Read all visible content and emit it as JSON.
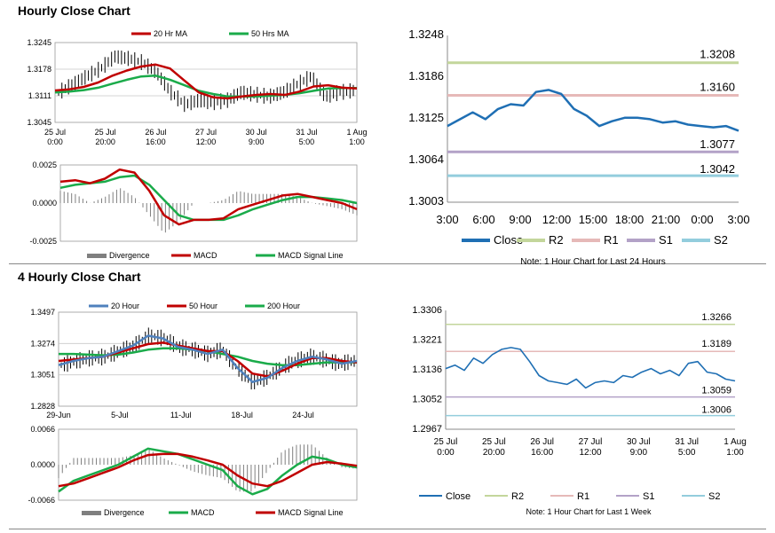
{
  "sections": [
    {
      "title": "Hourly Close Chart"
    },
    {
      "title": "4 Hourly Close Chart"
    }
  ],
  "colors": {
    "close": "#1f6fb4",
    "r2": "#c3d69b",
    "r1": "#e6b9b8",
    "s1": "#b3a2c7",
    "s2": "#93cddd",
    "ma_red": "#c00000",
    "ma_green": "#1aab4a",
    "ma_blue": "#4f81bd",
    "divergence": "#7f7f7f"
  },
  "chart_data": [
    {
      "id": "hourly_price",
      "type": "line",
      "legend": [
        "20 Hr MA",
        "50 Hrs MA"
      ],
      "x_ticks": [
        "25 Jul\n0:00",
        "25 Jul\n20:00",
        "26 Jul\n16:00",
        "27 Jul\n12:00",
        "30 Jul\n9:00",
        "31 Jul\n5:00",
        "1 Aug\n1:00"
      ],
      "y_ticks": [
        "1.3245",
        "1.3178",
        "1.3111",
        "1.3045"
      ],
      "ylim": [
        1.3045,
        1.3245
      ],
      "series": [
        {
          "name": "20 Hr MA",
          "values": [
            1.3125,
            1.3128,
            1.3134,
            1.3145,
            1.3162,
            1.3175,
            1.3185,
            1.319,
            1.318,
            1.315,
            1.312,
            1.3108,
            1.3105,
            1.311,
            1.3114,
            1.3116,
            1.3114,
            1.3122,
            1.3135,
            1.3138,
            1.3132,
            1.313
          ]
        },
        {
          "name": "50 Hrs MA",
          "values": [
            1.312,
            1.3122,
            1.3126,
            1.3132,
            1.3142,
            1.3152,
            1.316,
            1.3162,
            1.3152,
            1.3138,
            1.3124,
            1.3116,
            1.311,
            1.311,
            1.311,
            1.3112,
            1.3114,
            1.3118,
            1.3124,
            1.313,
            1.3131,
            1.3131
          ]
        },
        {
          "name": "Close",
          "values": [
            1.312,
            1.314,
            1.316,
            1.318,
            1.321,
            1.3205,
            1.3195,
            1.317,
            1.312,
            1.309,
            1.31,
            1.3095,
            1.31,
            1.312,
            1.3115,
            1.311,
            1.312,
            1.314,
            1.316,
            1.311,
            1.312,
            1.3125
          ]
        }
      ]
    },
    {
      "id": "hourly_macd",
      "type": "line",
      "legend": [
        "Divergence",
        "MACD",
        "MACD Signal Line"
      ],
      "y_ticks": [
        "0.0025",
        "0.0000",
        "-0.0025"
      ],
      "ylim": [
        -0.0025,
        0.0025
      ],
      "series": [
        {
          "name": "MACD",
          "values": [
            0.0014,
            0.0015,
            0.0013,
            0.0016,
            0.0022,
            0.002,
            0.0008,
            -0.0008,
            -0.0014,
            -0.0011,
            -0.0011,
            -0.001,
            -0.0004,
            -0.0001,
            0.0002,
            0.0005,
            0.0006,
            0.0004,
            0.0002,
            0.0,
            -0.0004
          ]
        },
        {
          "name": "MACD Signal Line",
          "values": [
            0.001,
            0.0012,
            0.0013,
            0.0014,
            0.0017,
            0.0018,
            0.0012,
            0.0002,
            -0.0008,
            -0.0011,
            -0.0011,
            -0.0011,
            -0.0008,
            -0.0004,
            -0.0001,
            0.0002,
            0.0004,
            0.0004,
            0.0003,
            0.0002,
            0.0
          ]
        }
      ]
    },
    {
      "id": "hourly_levels",
      "type": "line",
      "legend": [
        "Close",
        "R2",
        "R1",
        "S1",
        "S2"
      ],
      "x_ticks": [
        "3:00",
        "6:00",
        "9:00",
        "12:00",
        "15:00",
        "18:00",
        "21:00",
        "0:00",
        "3:00"
      ],
      "y_ticks": [
        "1.3248",
        "1.3186",
        "1.3125",
        "1.3064",
        "1.3003"
      ],
      "ylim": [
        1.3003,
        1.3248
      ],
      "levels": [
        {
          "name": "R2",
          "value": 1.3208,
          "label": "1.3208"
        },
        {
          "name": "R1",
          "value": 1.316,
          "label": "1.3160"
        },
        {
          "name": "S1",
          "value": 1.3077,
          "label": "1.3077"
        },
        {
          "name": "S2",
          "value": 1.3042,
          "label": "1.3042"
        }
      ],
      "close": [
        1.3115,
        1.3125,
        1.3135,
        1.3125,
        1.314,
        1.3147,
        1.3145,
        1.3165,
        1.3168,
        1.3162,
        1.314,
        1.313,
        1.3115,
        1.3122,
        1.3127,
        1.3127,
        1.3125,
        1.312,
        1.3122,
        1.3117,
        1.3115,
        1.3113,
        1.3115,
        1.3108
      ],
      "note": "Note: 1 Hour Chart for Last 24 Hours"
    },
    {
      "id": "four_hourly_price",
      "type": "line",
      "legend": [
        "20 Hour",
        "50 Hour",
        "200 Hour"
      ],
      "x_ticks": [
        "29-Jun",
        "5-Jul",
        "11-Jul",
        "18-Jul",
        "24-Jul"
      ],
      "y_ticks": [
        "1.3497",
        "1.3274",
        "1.3051",
        "1.2828"
      ],
      "ylim": [
        1.2828,
        1.3497
      ],
      "series": [
        {
          "name": "20 Hour",
          "values": [
            1.312,
            1.315,
            1.317,
            1.318,
            1.322,
            1.326,
            1.333,
            1.331,
            1.325,
            1.323,
            1.32,
            1.323,
            1.31,
            1.3,
            1.303,
            1.31,
            1.315,
            1.318,
            1.316,
            1.313,
            1.315
          ]
        },
        {
          "name": "50 Hour",
          "values": [
            1.315,
            1.316,
            1.317,
            1.318,
            1.321,
            1.324,
            1.327,
            1.328,
            1.326,
            1.324,
            1.322,
            1.322,
            1.315,
            1.306,
            1.304,
            1.308,
            1.313,
            1.317,
            1.317,
            1.315,
            1.314
          ]
        },
        {
          "name": "200 Hour",
          "values": [
            1.32,
            1.32,
            1.3195,
            1.319,
            1.3195,
            1.321,
            1.323,
            1.324,
            1.324,
            1.323,
            1.322,
            1.32,
            1.318,
            1.315,
            1.313,
            1.312,
            1.312,
            1.313,
            1.314,
            1.314,
            1.314
          ]
        }
      ]
    },
    {
      "id": "four_hourly_macd",
      "type": "line",
      "legend": [
        "Divergence",
        "MACD",
        "MACD Signal Line"
      ],
      "y_ticks": [
        "0.0066",
        "0.0000",
        "-0.0066"
      ],
      "ylim": [
        -0.0066,
        0.0066
      ],
      "series": [
        {
          "name": "MACD",
          "values": [
            -0.005,
            -0.003,
            -0.002,
            -0.001,
            0.0,
            0.0015,
            0.003,
            0.0025,
            0.002,
            0.001,
            0.0,
            -0.001,
            -0.004,
            -0.0055,
            -0.0045,
            -0.002,
            0.0,
            0.0015,
            0.001,
            0.0,
            -0.0005
          ]
        },
        {
          "name": "MACD Signal Line",
          "values": [
            -0.004,
            -0.0035,
            -0.0025,
            -0.0015,
            -0.0005,
            0.0008,
            0.0018,
            0.002,
            0.002,
            0.0015,
            0.0008,
            0.0,
            -0.002,
            -0.0035,
            -0.004,
            -0.003,
            -0.0015,
            0.0,
            0.0005,
            0.0002,
            -0.0002
          ]
        }
      ]
    },
    {
      "id": "four_hourly_levels",
      "type": "line",
      "legend": [
        "Close",
        "R2",
        "R1",
        "S1",
        "S2"
      ],
      "x_ticks": [
        "25 Jul\n0:00",
        "25 Jul\n20:00",
        "26 Jul\n16:00",
        "27 Jul\n12:00",
        "30 Jul\n9:00",
        "31 Jul\n5:00",
        "1 Aug\n1:00"
      ],
      "y_ticks": [
        "1.3306",
        "1.3221",
        "1.3136",
        "1.3052",
        "1.2967"
      ],
      "ylim": [
        1.2967,
        1.3306
      ],
      "levels": [
        {
          "name": "R2",
          "value": 1.3266,
          "label": "1.3266"
        },
        {
          "name": "R1",
          "value": 1.3189,
          "label": "1.3189"
        },
        {
          "name": "S1",
          "value": 1.3059,
          "label": "1.3059"
        },
        {
          "name": "S2",
          "value": 1.3006,
          "label": "1.3006"
        }
      ],
      "close": [
        1.314,
        1.315,
        1.3135,
        1.317,
        1.3155,
        1.318,
        1.3195,
        1.32,
        1.3195,
        1.316,
        1.312,
        1.3105,
        1.31,
        1.3095,
        1.311,
        1.3085,
        1.31,
        1.3105,
        1.31,
        1.312,
        1.3115,
        1.313,
        1.314,
        1.3125,
        1.3135,
        1.312,
        1.3155,
        1.316,
        1.313,
        1.3125,
        1.311,
        1.3105
      ],
      "note": "Note: 1 Hour Chart for Last 1 Week"
    }
  ]
}
